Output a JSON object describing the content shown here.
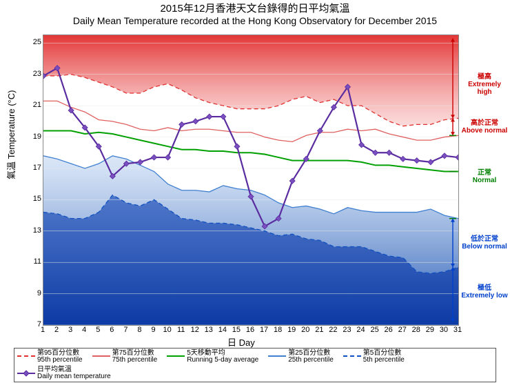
{
  "title_zh": "2015年12月香港天文台錄得的日平均氣溫",
  "title_en": "Daily Mean Temperature recorded at the Hong Kong Observatory for December 2015",
  "y_axis_label": "氣溫  Temperature (°C)",
  "x_axis_label": "日 Day",
  "chart": {
    "type": "line",
    "xlim": [
      1,
      31
    ],
    "ylim": [
      7,
      25.5
    ],
    "ytick_start": 7,
    "ytick_step": 2,
    "ytick_end": 25,
    "days": [
      1,
      2,
      3,
      4,
      5,
      6,
      7,
      8,
      9,
      10,
      11,
      12,
      13,
      14,
      15,
      16,
      17,
      18,
      19,
      20,
      21,
      22,
      23,
      24,
      25,
      26,
      27,
      28,
      29,
      30,
      31
    ],
    "daily_mean": [
      22.9,
      23.4,
      20.7,
      19.6,
      18.4,
      16.5,
      17.3,
      17.4,
      17.7,
      17.7,
      19.8,
      20.0,
      20.3,
      20.3,
      18.4,
      15.2,
      13.3,
      13.8,
      16.2,
      17.6,
      19.4,
      20.9,
      22.2,
      18.5,
      18.0,
      18.0,
      17.6,
      17.5,
      17.4,
      17.8,
      17.7
    ],
    "p95": [
      22.9,
      22.9,
      23.0,
      22.8,
      22.5,
      22.2,
      21.8,
      21.8,
      22.2,
      22.4,
      22.0,
      21.5,
      21.2,
      21.0,
      20.8,
      20.8,
      20.8,
      21.0,
      21.4,
      21.6,
      21.2,
      21.4,
      21.0,
      21.0,
      20.5,
      20.0,
      19.7,
      19.8,
      19.8,
      20.1,
      20.2
    ],
    "p75": [
      21.3,
      21.3,
      20.9,
      20.6,
      20.1,
      20.0,
      19.8,
      19.5,
      19.4,
      19.6,
      19.4,
      19.5,
      19.5,
      19.4,
      19.3,
      19.3,
      19.0,
      18.8,
      18.7,
      19.1,
      19.3,
      19.3,
      19.5,
      19.4,
      19.5,
      19.2,
      19.0,
      18.8,
      18.8,
      19.0,
      19.1
    ],
    "running5": [
      19.4,
      19.4,
      19.4,
      19.2,
      19.3,
      19.2,
      19.0,
      18.8,
      18.6,
      18.4,
      18.2,
      18.2,
      18.1,
      18.1,
      18.0,
      18.0,
      17.9,
      17.7,
      17.5,
      17.5,
      17.5,
      17.5,
      17.5,
      17.4,
      17.2,
      17.2,
      17.1,
      17.0,
      16.9,
      16.8,
      16.8
    ],
    "p25": [
      17.8,
      17.6,
      17.3,
      17.0,
      17.3,
      17.8,
      17.6,
      17.2,
      16.8,
      16.0,
      15.6,
      15.6,
      15.5,
      15.9,
      15.7,
      15.6,
      15.3,
      14.8,
      14.5,
      14.6,
      14.4,
      14.1,
      14.5,
      14.3,
      14.2,
      14.2,
      14.2,
      14.2,
      14.4,
      14.0,
      13.8
    ],
    "p5": [
      14.2,
      14.1,
      13.8,
      13.8,
      14.2,
      15.3,
      14.8,
      14.6,
      15.0,
      14.4,
      13.8,
      13.7,
      13.5,
      13.5,
      13.4,
      13.2,
      13.0,
      12.7,
      12.8,
      12.5,
      12.4,
      12.0,
      12.0,
      12.0,
      11.7,
      11.4,
      11.3,
      10.4,
      10.3,
      10.4,
      10.7
    ],
    "colors": {
      "background": "#ffffff",
      "plot_border": "#888888",
      "p95_line": "#e03030",
      "p75_line": "#e06060",
      "running5_line": "#00a000",
      "p25_line": "#4080d0",
      "p5_line": "#1050c0",
      "daily_mean_line": "#5a2ca0",
      "daily_mean_marker": "#7a4fc0",
      "band_extremely_high": "#e02020",
      "band_above_normal": "#ffffff",
      "band_normal": "#ffffff",
      "band_below_normal": "#6090d0",
      "band_extremely_low": "#1050c0",
      "grid": "#e8e8e8",
      "text": "#000000",
      "label_red": "#cc0000",
      "label_green": "#008000",
      "label_blue": "#0040cc"
    },
    "line_widths": {
      "daily_mean": 2.2,
      "running5": 2.0,
      "percentile": 1.3
    },
    "marker": {
      "style": "diamond",
      "size": 8
    }
  },
  "bands": [
    {
      "zh": "極高",
      "en": "Extremely high",
      "color": "#cc0000"
    },
    {
      "zh": "高於正常",
      "en": "Above normal",
      "color": "#cc0000"
    },
    {
      "zh": "正常",
      "en": "Normal",
      "color": "#008000"
    },
    {
      "zh": "低於正常",
      "en": "Below normal",
      "color": "#0040cc"
    },
    {
      "zh": "極低",
      "en": "Extremely low",
      "color": "#0040cc"
    }
  ],
  "legend": [
    {
      "zh": "第95百分位數",
      "en": "95th percentile",
      "style": "dashed",
      "color": "#e03030"
    },
    {
      "zh": "第75百分位數",
      "en": "75th percentile",
      "style": "solid",
      "color": "#e06060"
    },
    {
      "zh": "5天移動平均",
      "en": "Running 5-day average",
      "style": "solid",
      "color": "#00a000"
    },
    {
      "zh": "第25百分位數",
      "en": "25th percentile",
      "style": "solid",
      "color": "#4080d0"
    },
    {
      "zh": "第5百分位數",
      "en": "5th percentile",
      "style": "dashed",
      "color": "#1050c0"
    },
    {
      "zh": "日平均氣溫",
      "en": "Daily mean temperature",
      "style": "marker",
      "color": "#5a2ca0"
    }
  ]
}
